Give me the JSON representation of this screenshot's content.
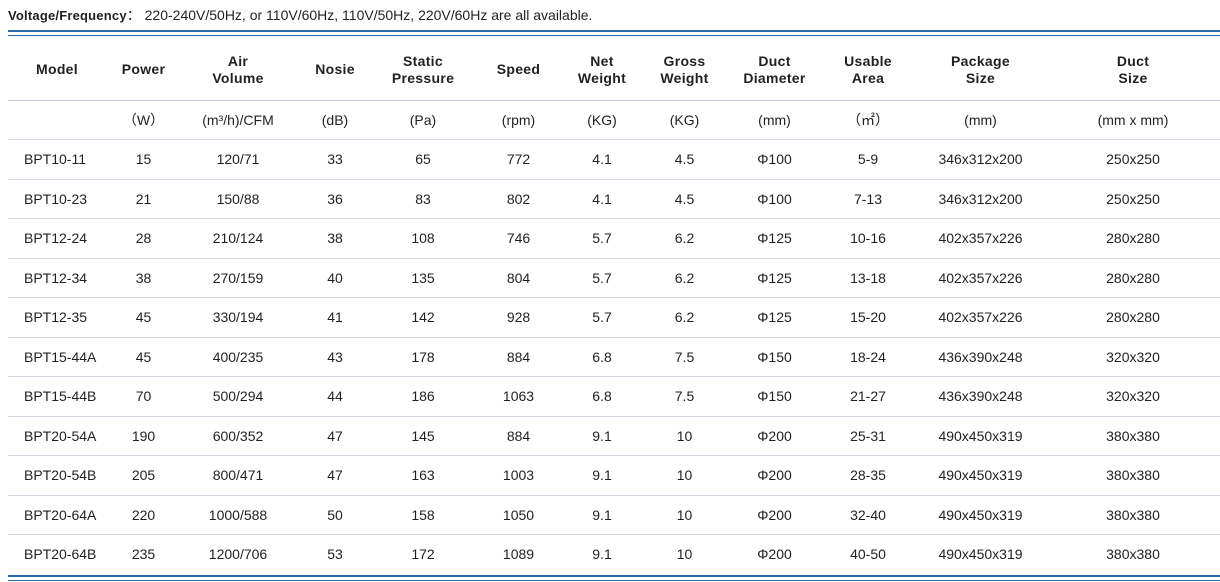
{
  "voltage": {
    "label": "Voltage/Frequency",
    "separator": "：",
    "text": "220-240V/50Hz, or 110V/60Hz, 110V/50Hz, 220V/60Hz are all available."
  },
  "columns": [
    {
      "line1": "Model",
      "line2": "",
      "unit": ""
    },
    {
      "line1": "Power",
      "line2": "",
      "unit": "（W）"
    },
    {
      "line1": "Air",
      "line2": "Volume",
      "unit": "(m³/h)/CFM"
    },
    {
      "line1": "Nosie",
      "line2": "",
      "unit": "(dB)"
    },
    {
      "line1": "Static",
      "line2": "Pressure",
      "unit": "(Pa)"
    },
    {
      "line1": "Speed",
      "line2": "",
      "unit": "(rpm)"
    },
    {
      "line1": "Net",
      "line2": "Weight",
      "unit": "(KG)"
    },
    {
      "line1": "Gross",
      "line2": "Weight",
      "unit": "(KG)"
    },
    {
      "line1": "Duct",
      "line2": "Diameter",
      "unit": "(mm)"
    },
    {
      "line1": "Usable",
      "line2": "Area",
      "unit": "（㎡）"
    },
    {
      "line1": "Package",
      "line2": "Size",
      "unit": "(mm)"
    },
    {
      "line1": "Duct",
      "line2": "Size",
      "unit": "(mm x mm)"
    }
  ],
  "rows": [
    [
      "BPT10-11",
      "15",
      "120/71",
      "33",
      "65",
      "772",
      "4.1",
      "4.5",
      "Φ100",
      "5-9",
      "346x312x200",
      "250x250"
    ],
    [
      "BPT10-23",
      "21",
      "150/88",
      "36",
      "83",
      "802",
      "4.1",
      "4.5",
      "Φ100",
      "7-13",
      "346x312x200",
      "250x250"
    ],
    [
      "BPT12-24",
      "28",
      "210/124",
      "38",
      "108",
      "746",
      "5.7",
      "6.2",
      "Φ125",
      "10-16",
      "402x357x226",
      "280x280"
    ],
    [
      "BPT12-34",
      "38",
      "270/159",
      "40",
      "135",
      "804",
      "5.7",
      "6.2",
      "Φ125",
      "13-18",
      "402x357x226",
      "280x280"
    ],
    [
      "BPT12-35",
      "45",
      "330/194",
      "41",
      "142",
      "928",
      "5.7",
      "6.2",
      "Φ125",
      "15-20",
      "402x357x226",
      "280x280"
    ],
    [
      "BPT15-44A",
      "45",
      "400/235",
      "43",
      "178",
      "884",
      "6.8",
      "7.5",
      "Φ150",
      "18-24",
      "436x390x248",
      "320x320"
    ],
    [
      "BPT15-44B",
      "70",
      "500/294",
      "44",
      "186",
      "1063",
      "6.8",
      "7.5",
      "Φ150",
      "21-27",
      "436x390x248",
      "320x320"
    ],
    [
      "BPT20-54A",
      "190",
      "600/352",
      "47",
      "145",
      "884",
      "9.1",
      "10",
      "Φ200",
      "25-31",
      "490x450x319",
      "380x380"
    ],
    [
      "BPT20-54B",
      "205",
      "800/471",
      "47",
      "163",
      "1003",
      "9.1",
      "10",
      "Φ200",
      "28-35",
      "490x450x319",
      "380x380"
    ],
    [
      "BPT20-64A",
      "220",
      "1000/588",
      "50",
      "158",
      "1050",
      "9.1",
      "10",
      "Φ200",
      "32-40",
      "490x450x319",
      "380x380"
    ],
    [
      "BPT20-64B",
      "235",
      "1200/706",
      "53",
      "172",
      "1089",
      "9.1",
      "10",
      "Φ200",
      "40-50",
      "490x450x319",
      "380x380"
    ]
  ],
  "colors": {
    "rule": "#2d6aa8",
    "text": "#231f20"
  }
}
